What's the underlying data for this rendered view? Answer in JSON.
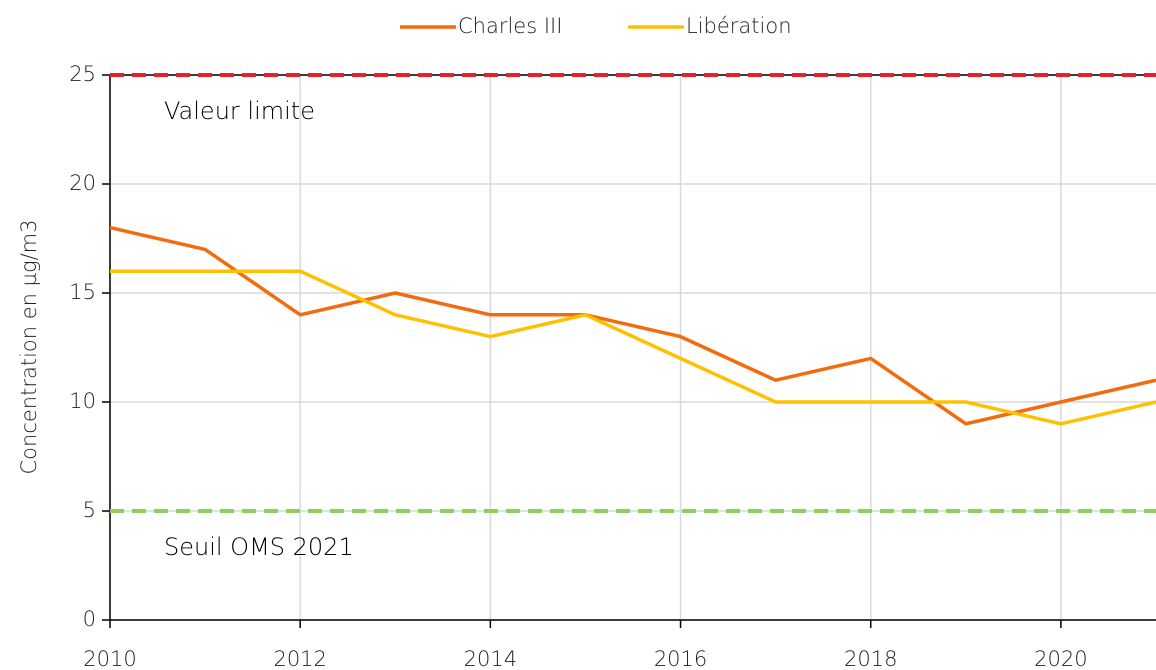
{
  "chart_data": {
    "type": "line",
    "y_axis_label": "Concentration en µg/m3",
    "x": [
      2010,
      2011,
      2012,
      2013,
      2014,
      2015,
      2016,
      2017,
      2018,
      2019,
      2020,
      2021
    ],
    "series": [
      {
        "name": "Charles III",
        "color": "#f26b0f",
        "values": [
          18,
          17,
          14,
          15,
          14,
          14,
          13,
          11,
          12,
          9,
          10,
          11
        ]
      },
      {
        "name": "Libération",
        "color": "#ffc000",
        "values": [
          16,
          16,
          16,
          14,
          13,
          14,
          12,
          10,
          10,
          10,
          9,
          10
        ]
      }
    ],
    "reference_lines": [
      {
        "label": "Valeur limite",
        "value": 25,
        "color": "#e8202a"
      },
      {
        "label": "Seuil OMS 2021",
        "value": 5,
        "color": "#8dd05a"
      }
    ],
    "xlim": [
      2010,
      2021
    ],
    "ylim": [
      0,
      25
    ],
    "xticks": [
      2010,
      2012,
      2014,
      2016,
      2018,
      2020
    ],
    "yticks": [
      0,
      5,
      10,
      15,
      20,
      25
    ],
    "grid": true,
    "legend_position": "top"
  }
}
